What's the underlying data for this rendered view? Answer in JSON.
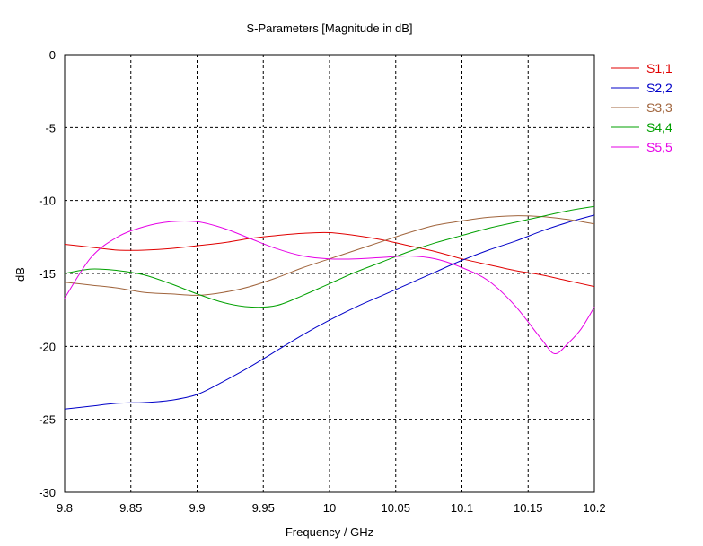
{
  "chart_data": {
    "type": "line",
    "title": "S-Parameters [Magnitude in dB]",
    "xlabel": "Frequency / GHz",
    "ylabel": "dB",
    "xlim": [
      9.8,
      10.2
    ],
    "ylim": [
      -30,
      0
    ],
    "xticks": [
      9.8,
      9.85,
      9.9,
      9.95,
      10,
      10.05,
      10.1,
      10.15,
      10.2
    ],
    "xtick_labels": [
      "9.8",
      "9.85",
      "9.9",
      "9.95",
      "10",
      "10.05",
      "10.1",
      "10.15",
      "10.2"
    ],
    "yticks": [
      0,
      -5,
      -10,
      -15,
      -20,
      -25,
      -30
    ],
    "ytick_labels": [
      "0",
      "-5",
      "-10",
      "-15",
      "-20",
      "-25",
      "-30"
    ],
    "grid": true,
    "legend_position": "right",
    "series": [
      {
        "name": "S1,1",
        "color": "#e00000",
        "x": [
          9.8,
          9.82,
          9.84,
          9.86,
          9.88,
          9.9,
          9.92,
          9.94,
          9.96,
          9.98,
          10.0,
          10.02,
          10.04,
          10.06,
          10.08,
          10.1,
          10.12,
          10.14,
          10.16,
          10.18,
          10.2
        ],
        "y": [
          -13.0,
          -13.2,
          -13.4,
          -13.4,
          -13.3,
          -13.1,
          -12.9,
          -12.6,
          -12.4,
          -12.25,
          -12.2,
          -12.4,
          -12.7,
          -13.1,
          -13.5,
          -14.0,
          -14.4,
          -14.8,
          -15.1,
          -15.5,
          -15.9
        ]
      },
      {
        "name": "S2,2",
        "color": "#0000c8",
        "x": [
          9.8,
          9.82,
          9.84,
          9.86,
          9.88,
          9.9,
          9.92,
          9.94,
          9.96,
          9.98,
          10.0,
          10.02,
          10.04,
          10.06,
          10.08,
          10.1,
          10.12,
          10.14,
          10.16,
          10.18,
          10.2
        ],
        "y": [
          -24.3,
          -24.1,
          -23.9,
          -23.85,
          -23.7,
          -23.3,
          -22.4,
          -21.4,
          -20.3,
          -19.2,
          -18.2,
          -17.3,
          -16.5,
          -15.7,
          -14.9,
          -14.1,
          -13.4,
          -12.8,
          -12.1,
          -11.5,
          -11.0
        ]
      },
      {
        "name": "S3,3",
        "color": "#a0643c",
        "x": [
          9.8,
          9.82,
          9.84,
          9.86,
          9.88,
          9.9,
          9.92,
          9.94,
          9.96,
          9.98,
          10.0,
          10.02,
          10.04,
          10.06,
          10.08,
          10.1,
          10.12,
          10.14,
          10.16,
          10.18,
          10.2
        ],
        "y": [
          -15.6,
          -15.8,
          -16.0,
          -16.3,
          -16.4,
          -16.5,
          -16.3,
          -15.9,
          -15.3,
          -14.6,
          -14.0,
          -13.4,
          -12.8,
          -12.2,
          -11.7,
          -11.4,
          -11.15,
          -11.05,
          -11.1,
          -11.3,
          -11.6
        ]
      },
      {
        "name": "S4,4",
        "color": "#00a000",
        "x": [
          9.8,
          9.82,
          9.84,
          9.86,
          9.88,
          9.9,
          9.92,
          9.94,
          9.96,
          9.98,
          10.0,
          10.02,
          10.04,
          10.06,
          10.08,
          10.1,
          10.12,
          10.14,
          10.16,
          10.18,
          10.2
        ],
        "y": [
          -15.0,
          -14.7,
          -14.8,
          -15.1,
          -15.7,
          -16.4,
          -17.0,
          -17.3,
          -17.2,
          -16.5,
          -15.7,
          -14.9,
          -14.2,
          -13.5,
          -12.9,
          -12.4,
          -11.9,
          -11.5,
          -11.1,
          -10.7,
          -10.4
        ]
      },
      {
        "name": "S5,5",
        "color": "#e600e6",
        "x": [
          9.8,
          9.82,
          9.84,
          9.86,
          9.88,
          9.9,
          9.92,
          9.94,
          9.96,
          9.98,
          10.0,
          10.02,
          10.04,
          10.06,
          10.08,
          10.1,
          10.12,
          10.14,
          10.16,
          10.17,
          10.18,
          10.19,
          10.2
        ],
        "y": [
          -16.7,
          -13.9,
          -12.5,
          -11.8,
          -11.45,
          -11.45,
          -11.9,
          -12.6,
          -13.3,
          -13.8,
          -14.0,
          -14.0,
          -13.9,
          -13.8,
          -14.0,
          -14.6,
          -15.5,
          -17.2,
          -19.5,
          -20.5,
          -19.8,
          -18.8,
          -17.3
        ]
      }
    ]
  }
}
